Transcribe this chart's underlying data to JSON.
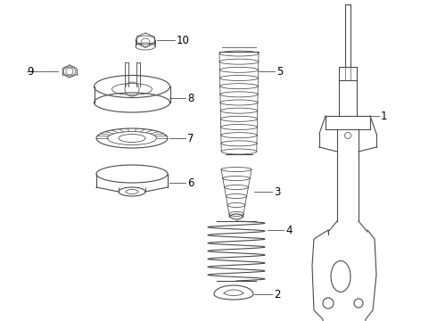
{
  "bg_color": "#ffffff",
  "line_color": "#4a4a4a",
  "label_color": "#000000",
  "label_fontsize": 8.5,
  "figsize": [
    4.9,
    3.6
  ],
  "dpi": 100
}
